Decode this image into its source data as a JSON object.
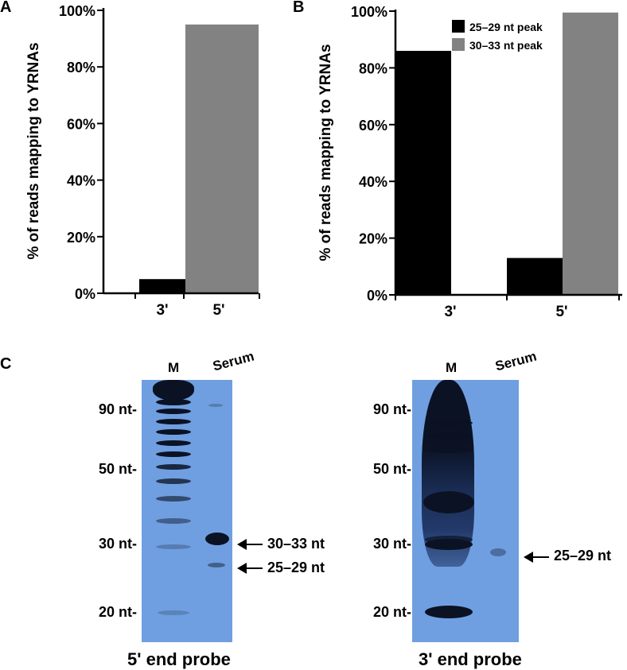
{
  "panels": {
    "a": "A",
    "b": "B",
    "c": "C"
  },
  "colors": {
    "series_black": "#000000",
    "series_gray": "#828282",
    "gel_blue": "#6f9fe0",
    "band_dark": "#0b1224"
  },
  "chart_data": [
    {
      "id": "A",
      "type": "bar",
      "categories": [
        "3'",
        "5'"
      ],
      "values": [
        5,
        95
      ],
      "bar_colors": [
        "#000000",
        "#828282"
      ],
      "ylabel": "% of reads mapping to YRNAs",
      "yticks": [
        "0%",
        "20%",
        "40%",
        "60%",
        "80%",
        "100%"
      ],
      "ylim": [
        0,
        100
      ]
    },
    {
      "id": "B",
      "type": "bar",
      "categories": [
        "3'",
        "5'"
      ],
      "series": [
        {
          "name": "25–29 nt peak",
          "values": [
            86,
            13
          ],
          "color": "#000000"
        },
        {
          "name": "30–33 nt peak",
          "values": [
            0.3,
            99.5
          ],
          "color": "#828282"
        }
      ],
      "ylabel": "% of reads mapping to YRNAs",
      "yticks": [
        "0%",
        "20%",
        "40%",
        "60%",
        "80%",
        "100%"
      ],
      "ylim": [
        0,
        100
      ],
      "legend": "top-right"
    }
  ],
  "gels": {
    "left": {
      "lane_m": "M",
      "lane_serum": "Serum",
      "caption": "5' end probe",
      "markers": [
        "90 nt-",
        "50 nt-",
        "30 nt-",
        "20 nt-"
      ],
      "bands": [
        "30–33 nt",
        "25–29 nt"
      ]
    },
    "right": {
      "lane_m": "M",
      "lane_serum": "Serum",
      "caption": "3' end probe",
      "markers": [
        "90 nt-",
        "50 nt-",
        "30 nt-",
        "20 nt-"
      ],
      "bands": [
        "25–29 nt"
      ]
    }
  }
}
